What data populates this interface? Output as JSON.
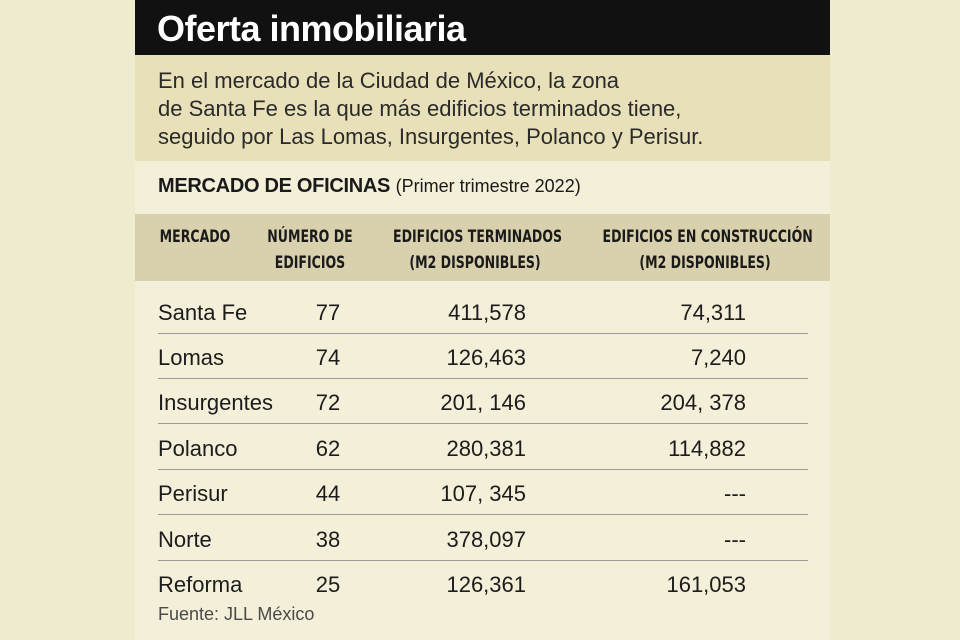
{
  "header": {
    "title": "Oferta inmobiliaria",
    "intro_lines": [
      "En el mercado de la Ciudad de México, la zona",
      "de Santa Fe es la que más edificios terminados tiene,",
      "seguido por Las Lomas, Insurgentes, Polanco y Perisur."
    ]
  },
  "table": {
    "subtitle": "MERCADO DE OFICINAS",
    "period": "(Primer trimestre 2022)",
    "columns": [
      [
        "MERCADO"
      ],
      [
        "NÚMERO DE",
        "EDIFICIOS"
      ],
      [
        "EDIFICIOS TERMINADOS",
        "(M2 DISPONIBLES)"
      ],
      [
        "EDIFICIOS EN CONSTRUCCIÓN",
        "(M2 DISPONIBLES)"
      ]
    ],
    "rows": [
      {
        "mercado": "Santa Fe",
        "numero": "77",
        "terminados": "411,578",
        "construccion": "74,311"
      },
      {
        "mercado": "Lomas",
        "numero": "74",
        "terminados": "126,463",
        "construccion": "7,240"
      },
      {
        "mercado": "Insurgentes",
        "numero": "72",
        "terminados": "201, 146",
        "construccion": "204, 378"
      },
      {
        "mercado": "Polanco",
        "numero": "62",
        "terminados": "280,381",
        "construccion": "114,882"
      },
      {
        "mercado": "Perisur",
        "numero": "44",
        "terminados": "107, 345",
        "construccion": "---"
      },
      {
        "mercado": "Norte",
        "numero": "38",
        "terminados": "378,097",
        "construccion": "---"
      },
      {
        "mercado": "Reforma",
        "numero": "25",
        "terminados": "126,361",
        "construccion": "161,053"
      }
    ],
    "source": "Fuente: JLL México"
  },
  "chart_data": {
    "type": "table",
    "title": "Oferta inmobiliaria",
    "subtitle": "MERCADO DE OFICINAS (Primer trimestre 2022)",
    "columns": [
      "MERCADO",
      "NÚMERO DE EDIFICIOS",
      "EDIFICIOS TERMINADOS (M2 DISPONIBLES)",
      "EDIFICIOS EN CONSTRUCCIÓN (M2 DISPONIBLES)"
    ],
    "categories": [
      "Santa Fe",
      "Lomas",
      "Insurgentes",
      "Polanco",
      "Perisur",
      "Norte",
      "Reforma"
    ],
    "series": [
      {
        "name": "NÚMERO DE EDIFICIOS",
        "values": [
          77,
          74,
          72,
          62,
          44,
          38,
          25
        ]
      },
      {
        "name": "EDIFICIOS TERMINADOS (M2 DISPONIBLES)",
        "values": [
          411578,
          126463,
          201146,
          280381,
          107345,
          378097,
          126361
        ]
      },
      {
        "name": "EDIFICIOS EN CONSTRUCCIÓN (M2 DISPONIBLES)",
        "values": [
          74311,
          7240,
          204378,
          114882,
          null,
          null,
          161053
        ]
      }
    ],
    "source": "Fuente: JLL México"
  }
}
